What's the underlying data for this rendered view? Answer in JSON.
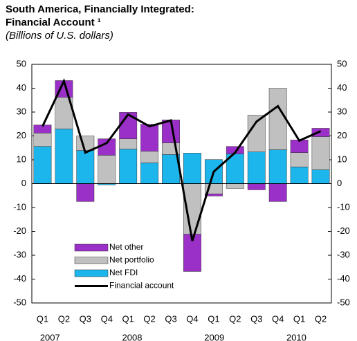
{
  "chart_data": {
    "type": "stacked_bar_line",
    "title_lines": [
      "South America, Financially Integrated:",
      "Financial Account ¹"
    ],
    "subtitle": "(Billions of U.S. dollars)",
    "categories": [
      "Q1",
      "Q2",
      "Q3",
      "Q4",
      "Q1",
      "Q2",
      "Q3",
      "Q4",
      "Q1",
      "Q2",
      "Q3",
      "Q4",
      "Q1",
      "Q2"
    ],
    "years": [
      "2007",
      "2008",
      "2009",
      "2010"
    ],
    "series": [
      {
        "name": "Net FDI",
        "type": "bar",
        "color": "#1cb5ec",
        "values": [
          15.6,
          22.9,
          13.9,
          -0.5,
          14.5,
          8.7,
          12.2,
          12.8,
          10.1,
          12.5,
          13.3,
          14.2,
          7.0,
          5.8
        ]
      },
      {
        "name": "Net portfolio",
        "type": "bar",
        "color": "#c0c0c0",
        "values": [
          5.6,
          13.3,
          6.1,
          11.9,
          4.3,
          4.9,
          4.9,
          -21.2,
          -4.3,
          -2.0,
          15.4,
          25.8,
          6.0,
          13.9
        ]
      },
      {
        "name": "Net other",
        "type": "bar",
        "color": "#9b30c8",
        "values": [
          3.4,
          7.0,
          -7.5,
          6.9,
          11.1,
          11.3,
          9.6,
          -15.6,
          -0.9,
          3.1,
          -2.6,
          -7.5,
          5.3,
          3.5
        ]
      },
      {
        "name": "Financial account",
        "type": "line",
        "color": "#000000",
        "values": [
          24,
          43,
          13,
          17,
          29,
          24,
          26.5,
          -24,
          5,
          13,
          26,
          32.5,
          18,
          22
        ]
      }
    ],
    "ylim": [
      -50,
      50
    ],
    "yticks": [
      -50,
      -40,
      -30,
      -20,
      -10,
      0,
      10,
      20,
      30,
      40,
      50
    ],
    "y2lim": [
      -50,
      50
    ],
    "y2ticks": [
      -50,
      -40,
      -30,
      -20,
      -10,
      0,
      10,
      20,
      30,
      40,
      50
    ]
  }
}
